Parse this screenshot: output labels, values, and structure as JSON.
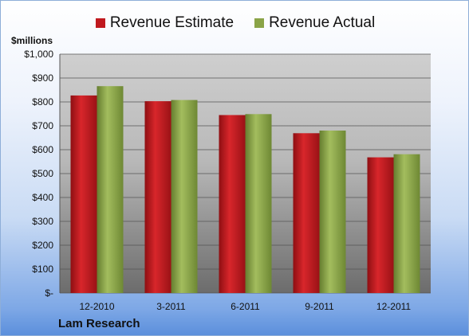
{
  "chart_data": {
    "type": "bar",
    "categories": [
      "12-2010",
      "3-2011",
      "6-2011",
      "9-2011",
      "12-2011"
    ],
    "series": [
      {
        "name": "Revenue Estimate",
        "values": [
          827,
          803,
          745,
          669,
          568
        ],
        "color": "#c0191e"
      },
      {
        "name": "Revenue Actual",
        "values": [
          866,
          808,
          749,
          680,
          581
        ],
        "color": "#8aa447"
      }
    ],
    "ylabel": "$millions",
    "yticks": [
      "$-",
      "$100",
      "$200",
      "$300",
      "$400",
      "$500",
      "$600",
      "$700",
      "$800",
      "$900",
      "$1,000"
    ],
    "ylim": [
      0,
      1000
    ],
    "grid": true,
    "legend_position": "top",
    "annotation": "Lam Research"
  }
}
